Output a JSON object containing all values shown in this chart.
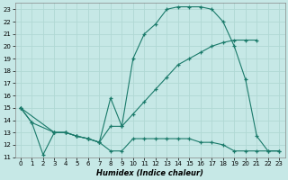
{
  "title": "",
  "xlabel": "Humidex (Indice chaleur)",
  "ylabel": "",
  "xlim": [
    -0.5,
    23.5
  ],
  "ylim": [
    11,
    23.5
  ],
  "xticks": [
    0,
    1,
    2,
    3,
    4,
    5,
    6,
    7,
    8,
    9,
    10,
    11,
    12,
    13,
    14,
    15,
    16,
    17,
    18,
    19,
    20,
    21,
    22,
    23
  ],
  "yticks": [
    11,
    12,
    13,
    14,
    15,
    16,
    17,
    18,
    19,
    20,
    21,
    22,
    23
  ],
  "bg_color": "#c6e8e6",
  "line_color": "#1a7a6a",
  "grid_color": "#b0d8d4",
  "series": [
    {
      "x": [
        0,
        1,
        2,
        3,
        4,
        5,
        6,
        7,
        8,
        9,
        10,
        11,
        12,
        13,
        14,
        15,
        16,
        17,
        18,
        19,
        20,
        21,
        22,
        23
      ],
      "y": [
        15,
        13.8,
        11.2,
        13.0,
        13.0,
        12.7,
        12.5,
        12.2,
        11.5,
        11.5,
        12.5,
        12.5,
        12.5,
        12.5,
        12.5,
        12.5,
        12.2,
        12.2,
        12.0,
        11.5,
        11.5,
        11.5,
        11.5,
        11.5
      ]
    },
    {
      "x": [
        0,
        3,
        4,
        5,
        6,
        7,
        8,
        9,
        10,
        11,
        12,
        13,
        14,
        15,
        16,
        17,
        18,
        19,
        20,
        21
      ],
      "y": [
        15,
        13.0,
        13.0,
        12.7,
        12.5,
        12.2,
        13.5,
        13.5,
        14.5,
        15.5,
        16.5,
        17.5,
        18.5,
        19.0,
        19.5,
        20.0,
        20.3,
        20.5,
        20.5,
        20.5
      ]
    },
    {
      "x": [
        0,
        1,
        3,
        4,
        5,
        6,
        7,
        8,
        9,
        10,
        11,
        12,
        13,
        14,
        15,
        16,
        17,
        18,
        19,
        20,
        21,
        22,
        23
      ],
      "y": [
        15,
        13.8,
        13.0,
        13.0,
        12.7,
        12.5,
        12.2,
        15.8,
        13.5,
        19.0,
        21.0,
        21.8,
        23.0,
        23.2,
        23.2,
        23.2,
        23.0,
        22.0,
        20.0,
        17.3,
        12.7,
        11.5,
        11.5
      ]
    }
  ]
}
